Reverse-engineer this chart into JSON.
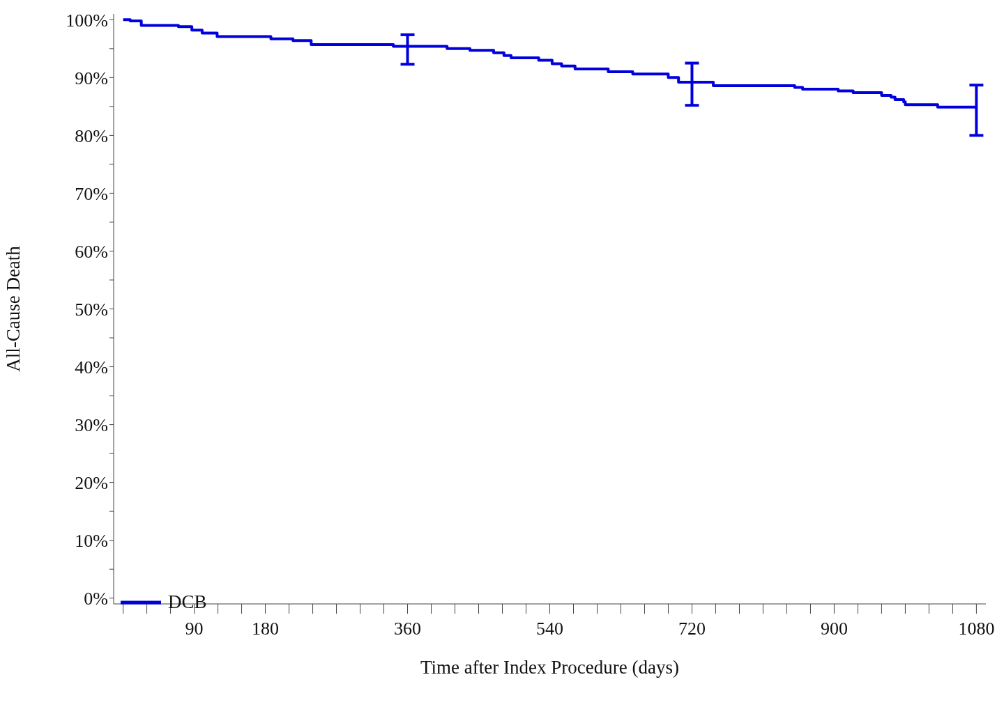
{
  "chart_data": {
    "type": "step",
    "xlabel": "Time after Index Procedure (days)",
    "ylabel": "All-Cause Death",
    "series": [
      {
        "name": "DCB",
        "color": "#0000dd",
        "x": [
          0,
          9,
          23,
          70,
          87,
          100,
          119,
          187,
          215,
          238,
          342,
          360,
          410,
          439,
          469,
          482,
          491,
          526,
          543,
          555,
          572,
          614,
          645,
          690,
          703,
          720,
          747,
          850,
          860,
          905,
          924,
          960,
          972,
          977,
          988,
          990,
          1031,
          1080
        ],
        "values": [
          100,
          99.8,
          99.0,
          98.8,
          98.2,
          97.7,
          97.1,
          96.7,
          96.4,
          95.7,
          95.4,
          95.4,
          95.0,
          94.7,
          94.3,
          93.8,
          93.4,
          93.0,
          92.4,
          92.0,
          91.5,
          91.0,
          90.6,
          90.0,
          89.2,
          89.2,
          88.6,
          88.3,
          88.0,
          87.7,
          87.4,
          86.9,
          86.6,
          86.2,
          85.8,
          85.3,
          84.9,
          84.9
        ],
        "errors": [
          null,
          null,
          null,
          null,
          null,
          null,
          null,
          null,
          null,
          null,
          null,
          [
            92.3,
            97.4
          ],
          null,
          null,
          null,
          null,
          null,
          null,
          null,
          null,
          null,
          null,
          null,
          null,
          null,
          [
            85.2,
            92.5
          ],
          null,
          null,
          null,
          null,
          null,
          null,
          null,
          null,
          null,
          null,
          null,
          [
            80.0,
            88.7
          ]
        ]
      }
    ],
    "xlim": [
      -12,
      1092
    ],
    "xticks": [
      {
        "value": 0,
        "label": null
      },
      {
        "value": 30,
        "label": null
      },
      {
        "value": 60,
        "label": null
      },
      90,
      {
        "value": 120,
        "label": null
      },
      {
        "value": 150,
        "label": null
      },
      180,
      {
        "value": 210,
        "label": null
      },
      {
        "value": 240,
        "label": null
      },
      {
        "value": 270,
        "label": null
      },
      {
        "value": 300,
        "label": null
      },
      {
        "value": 330,
        "label": null
      },
      360,
      {
        "value": 390,
        "label": null
      },
      {
        "value": 420,
        "label": null
      },
      {
        "value": 450,
        "label": null
      },
      {
        "value": 480,
        "label": null
      },
      {
        "value": 510,
        "label": null
      },
      540,
      {
        "value": 570,
        "label": null
      },
      {
        "value": 600,
        "label": null
      },
      {
        "value": 630,
        "label": null
      },
      {
        "value": 660,
        "label": null
      },
      {
        "value": 690,
        "label": null
      },
      720,
      {
        "value": 750,
        "label": null
      },
      {
        "value": 780,
        "label": null
      },
      {
        "value": 810,
        "label": null
      },
      {
        "value": 840,
        "label": null
      },
      {
        "value": 870,
        "label": null
      },
      900,
      {
        "value": 930,
        "label": null
      },
      {
        "value": 960,
        "label": null
      },
      {
        "value": 990,
        "label": null
      },
      {
        "value": 1020,
        "label": null
      },
      {
        "value": 1050,
        "label": null
      },
      1080
    ],
    "ylim": [
      -1,
      101
    ],
    "yticks": [
      {
        "value": 0,
        "label": "0%"
      },
      {
        "value": 5,
        "label": null
      },
      {
        "value": 10,
        "label": "10%"
      },
      {
        "value": 15,
        "label": null
      },
      {
        "value": 20,
        "label": "20%"
      },
      {
        "value": 25,
        "label": null
      },
      {
        "value": 30,
        "label": "30%"
      },
      {
        "value": 35,
        "label": null
      },
      {
        "value": 40,
        "label": "40%"
      },
      {
        "value": 45,
        "label": null
      },
      {
        "value": 50,
        "label": "50%"
      },
      {
        "value": 55,
        "label": null
      },
      {
        "value": 60,
        "label": "60%"
      },
      {
        "value": 65,
        "label": null
      },
      {
        "value": 70,
        "label": "70%"
      },
      {
        "value": 75,
        "label": null
      },
      {
        "value": 80,
        "label": "80%"
      },
      {
        "value": 85,
        "label": null
      },
      {
        "value": 90,
        "label": "90%"
      },
      {
        "value": 95,
        "label": null
      },
      {
        "value": 100,
        "label": "100%"
      }
    ],
    "grid": false,
    "legend": "bottom left",
    "marker": "none",
    "line_style": "solid"
  }
}
